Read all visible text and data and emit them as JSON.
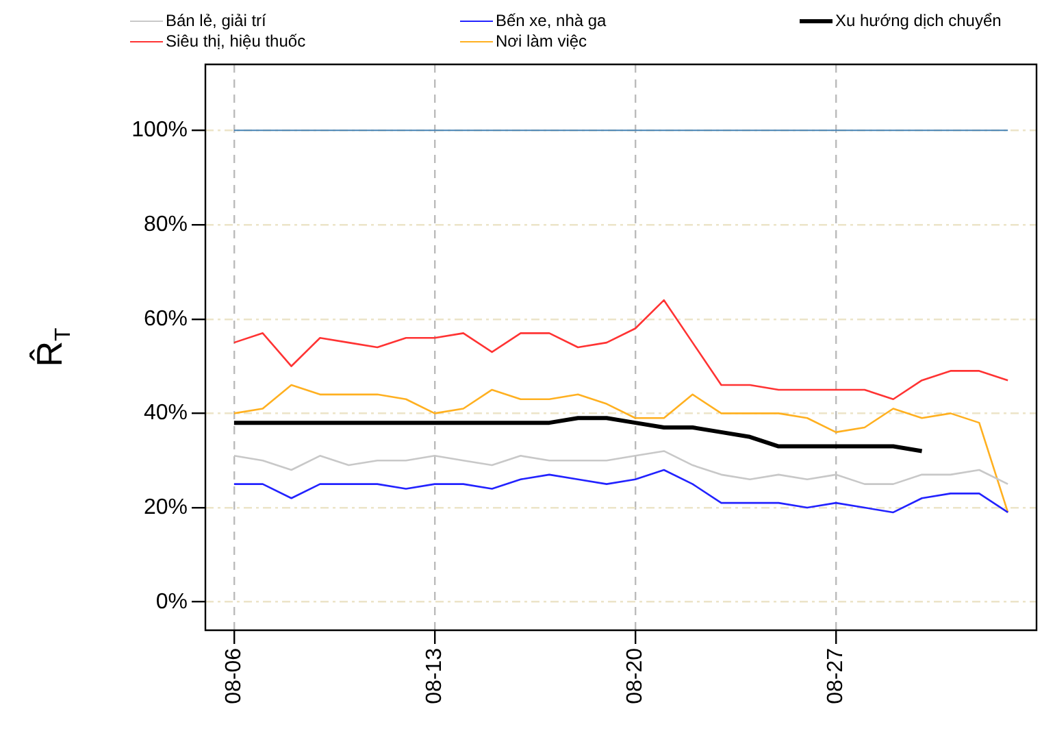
{
  "chart_data": {
    "type": "line",
    "ylabel": "R̂$_{T}$",
    "x": [
      "--08-06",
      "--08-07",
      "--08-08",
      "--08-09",
      "--08-10",
      "--08-11",
      "--08-12",
      "--08-13",
      "--08-14",
      "--08-15",
      "--08-16",
      "--08-17",
      "--08-18",
      "--08-19",
      "--08-20",
      "--08-21",
      "--08-22",
      "--08-23",
      "--08-24",
      "--08-25",
      "--08-26",
      "--08-27",
      "--08-28",
      "--08-29",
      "--08-30",
      "--08-31",
      "--09-01",
      "--09-02"
    ],
    "series": [
      {
        "name": "Bán lẻ, giải trí",
        "color": "#c8c8c8",
        "values": [
          31,
          30,
          28,
          31,
          29,
          30,
          30,
          31,
          30,
          29,
          31,
          30,
          30,
          30,
          31,
          32,
          29,
          27,
          26,
          27,
          26,
          27,
          25,
          25,
          27,
          27,
          28,
          25
        ]
      },
      {
        "name": "Bến xe, nhà ga",
        "color": "#2222ff",
        "values": [
          25,
          25,
          22,
          25,
          25,
          25,
          24,
          25,
          25,
          24,
          26,
          27,
          26,
          25,
          26,
          28,
          25,
          21,
          21,
          21,
          20,
          21,
          20,
          19,
          22,
          23,
          23,
          19
        ]
      },
      {
        "name": "Xu hướng dịch chuyển",
        "color": "#000000",
        "type": "line",
        "x": [
          "--08-06",
          "--08-07",
          "--08-08",
          "--08-09",
          "--08-10",
          "--08-11",
          "--08-12",
          "--08-13",
          "--08-14",
          "--08-15",
          "--08-16",
          "--08-17",
          "--08-18",
          "--08-19",
          "--08-20",
          "--08-21",
          "--08-22",
          "--08-23",
          "--08-24",
          "--08-25",
          "--08-26",
          "--08-27",
          "--08-28",
          "--08-29",
          "--08-30"
        ],
        "values": [
          38,
          38,
          38,
          38,
          38,
          38,
          38,
          38,
          38,
          38,
          38,
          38,
          39,
          39,
          38,
          37,
          37,
          36,
          35,
          33,
          33,
          33,
          33,
          33,
          32
        ]
      },
      {
        "name": "Siêu thị, hiệu thuốc",
        "color": "#ff3333",
        "values": [
          55,
          57,
          50,
          56,
          55,
          54,
          56,
          56,
          57,
          53,
          57,
          57,
          54,
          55,
          58,
          64,
          55,
          46,
          46,
          45,
          45,
          45,
          45,
          43,
          47,
          49,
          49,
          47
        ]
      },
      {
        "name": "Nơi làm việc",
        "color": "#ffb020",
        "values": [
          40,
          41,
          46,
          44,
          44,
          44,
          43,
          40,
          41,
          45,
          43,
          43,
          44,
          42,
          39,
          39,
          44,
          40,
          40,
          40,
          39,
          36,
          37,
          41,
          39,
          40,
          38,
          19
        ]
      }
    ],
    "xlim": [
      "--08-05",
      "--09-03"
    ],
    "xticks": [
      {
        "value": "--08-06",
        "label": "08-06"
      },
      {
        "value": "--08-13",
        "label": "08-13"
      },
      {
        "value": "--08-20",
        "label": "08-20"
      },
      {
        "value": "--08-27",
        "label": "08-27"
      }
    ],
    "ylim": [
      -6,
      114
    ],
    "yticks": [
      {
        "value": 0,
        "label": "0%"
      },
      {
        "value": 20,
        "label": "20%"
      },
      {
        "value": 40,
        "label": "40%"
      },
      {
        "value": 60,
        "label": "60%"
      },
      {
        "value": 80,
        "label": "80%"
      },
      {
        "value": 100,
        "label": "100%"
      }
    ],
    "ref_lines": [
      {
        "axis": "y",
        "value": 100,
        "color": "#4682b4"
      }
    ],
    "grid": true,
    "legend": "top"
  }
}
